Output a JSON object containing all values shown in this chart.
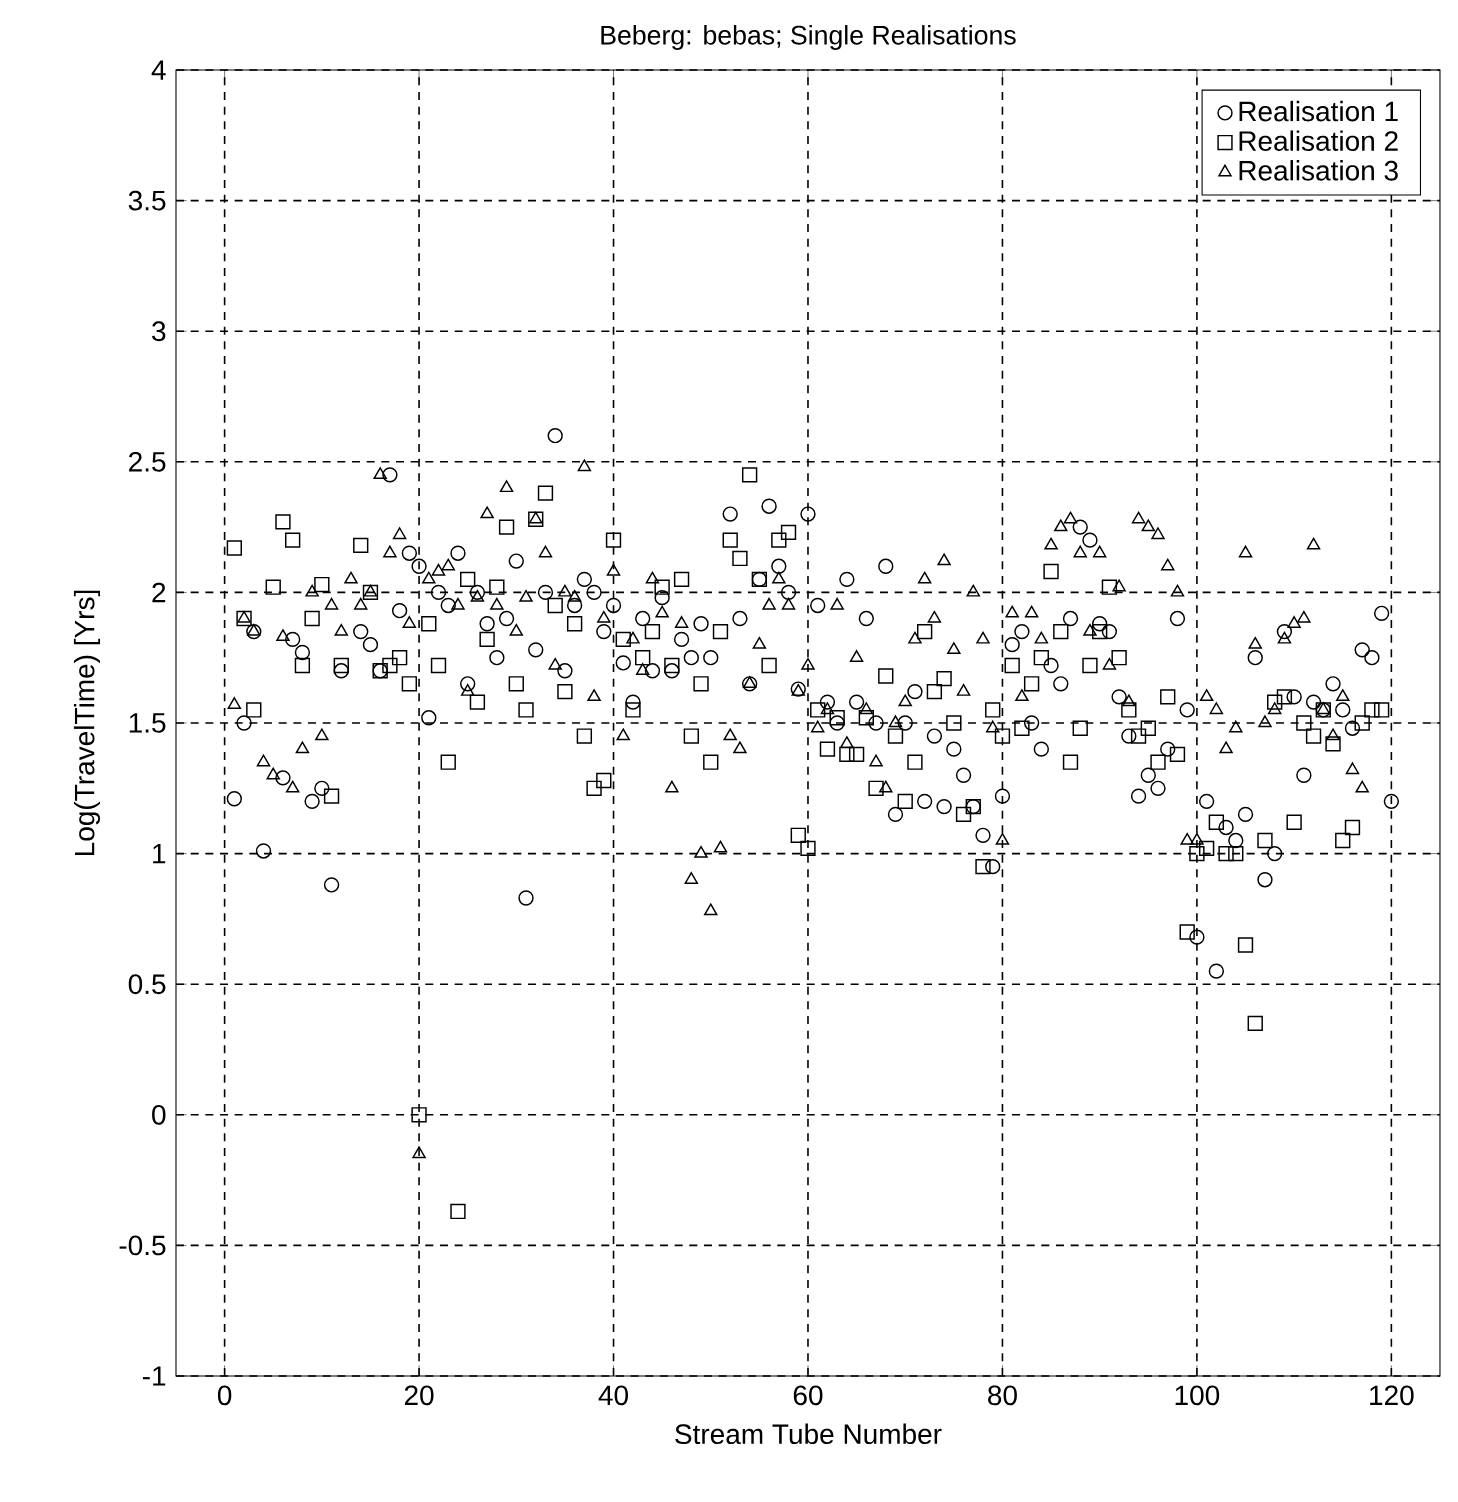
{
  "chart_data": {
    "type": "scatter",
    "title": "Beberg: bebas;    Single Realisations",
    "xlabel": "Stream Tube Number",
    "ylabel": "Log(TravelTime) [Yrs]",
    "xlim": [
      -5,
      125
    ],
    "ylim": [
      -1,
      4
    ],
    "xticks": [
      0,
      20,
      40,
      60,
      80,
      100,
      120
    ],
    "yticks": [
      -1,
      -0.5,
      0,
      0.5,
      1,
      1.5,
      2,
      2.5,
      3,
      3.5,
      4
    ],
    "grid": true,
    "legend": "top right",
    "series": [
      {
        "name": "Realisation 1",
        "color": "#000000",
        "marker": "circle",
        "x": [
          1,
          2,
          3,
          4,
          6,
          7,
          8,
          9,
          10,
          11,
          12,
          14,
          15,
          16,
          17,
          18,
          19,
          20,
          21,
          22,
          23,
          24,
          25,
          26,
          27,
          28,
          29,
          30,
          31,
          32,
          33,
          34,
          35,
          36,
          37,
          38,
          39,
          40,
          41,
          42,
          43,
          44,
          45,
          46,
          47,
          48,
          49,
          50,
          52,
          53,
          54,
          55,
          56,
          57,
          58,
          59,
          60,
          61,
          62,
          63,
          64,
          65,
          66,
          67,
          68,
          69,
          70,
          71,
          72,
          73,
          74,
          75,
          76,
          77,
          78,
          79,
          80,
          81,
          82,
          83,
          84,
          85,
          86,
          87,
          88,
          89,
          90,
          91,
          92,
          93,
          94,
          95,
          96,
          97,
          98,
          99,
          100,
          101,
          102,
          103,
          104,
          105,
          106,
          107,
          108,
          109,
          110,
          111,
          112,
          113,
          114,
          115,
          116,
          117,
          118,
          119,
          120
        ],
        "values": [
          1.21,
          1.5,
          1.85,
          1.01,
          1.29,
          1.82,
          1.77,
          1.2,
          1.25,
          0.88,
          1.7,
          1.85,
          1.8,
          1.7,
          2.45,
          1.93,
          2.15,
          2.1,
          1.52,
          2.0,
          1.95,
          2.15,
          1.65,
          2.0,
          1.88,
          1.75,
          1.9,
          2.12,
          0.83,
          1.78,
          2.0,
          2.6,
          1.7,
          1.95,
          2.05,
          2.0,
          1.85,
          1.95,
          1.73,
          1.58,
          1.9,
          1.7,
          1.98,
          1.7,
          1.82,
          1.75,
          1.88,
          1.75,
          2.3,
          1.9,
          1.65,
          2.05,
          2.33,
          2.1,
          2.0,
          1.63,
          2.3,
          1.95,
          1.58,
          1.5,
          2.05,
          1.58,
          1.9,
          1.5,
          2.1,
          1.15,
          1.5,
          1.62,
          1.2,
          1.45,
          1.18,
          1.4,
          1.3,
          1.18,
          1.07,
          0.95,
          1.22,
          1.8,
          1.85,
          1.5,
          1.4,
          1.72,
          1.65,
          1.9,
          2.25,
          2.2,
          1.88,
          1.85,
          1.6,
          1.45,
          1.22,
          1.3,
          1.25,
          1.4,
          1.9,
          1.55,
          0.68,
          1.2,
          0.55,
          1.1,
          1.05,
          1.15,
          1.75,
          0.9,
          1.0,
          1.85,
          1.6,
          1.3,
          1.58,
          1.55,
          1.65,
          1.55,
          1.48,
          1.78,
          1.75,
          1.92,
          1.2
        ]
      },
      {
        "name": "Realisation 2",
        "color": "#000000",
        "marker": "square",
        "x": [
          1,
          2,
          3,
          5,
          6,
          7,
          8,
          9,
          10,
          11,
          12,
          14,
          15,
          16,
          17,
          18,
          19,
          20,
          21,
          22,
          23,
          24,
          25,
          26,
          27,
          28,
          29,
          30,
          31,
          32,
          33,
          34,
          35,
          36,
          37,
          38,
          39,
          40,
          41,
          42,
          43,
          44,
          45,
          46,
          47,
          48,
          49,
          50,
          51,
          52,
          53,
          54,
          55,
          56,
          57,
          58,
          59,
          60,
          61,
          62,
          63,
          64,
          65,
          66,
          67,
          68,
          69,
          70,
          71,
          72,
          73,
          74,
          75,
          76,
          77,
          78,
          79,
          80,
          81,
          82,
          83,
          84,
          85,
          86,
          87,
          88,
          89,
          90,
          91,
          92,
          93,
          94,
          95,
          96,
          97,
          98,
          99,
          100,
          101,
          102,
          103,
          104,
          105,
          106,
          107,
          108,
          109,
          110,
          111,
          112,
          113,
          114,
          115,
          116,
          117,
          118,
          119
        ],
        "values": [
          2.17,
          1.9,
          1.55,
          2.02,
          2.27,
          2.2,
          1.72,
          1.9,
          2.03,
          1.22,
          1.72,
          2.18,
          2.0,
          1.7,
          1.72,
          1.75,
          1.65,
          0.0,
          1.88,
          1.72,
          1.35,
          -0.37,
          2.05,
          1.58,
          1.82,
          2.02,
          2.25,
          1.65,
          1.55,
          2.28,
          2.38,
          1.95,
          1.62,
          1.88,
          1.45,
          1.25,
          1.28,
          2.2,
          1.82,
          1.55,
          1.75,
          1.85,
          2.02,
          1.72,
          2.05,
          1.45,
          1.65,
          1.35,
          1.85,
          2.2,
          2.13,
          2.45,
          2.05,
          1.72,
          2.2,
          2.23,
          1.07,
          1.02,
          1.55,
          1.4,
          1.52,
          1.38,
          1.38,
          1.52,
          1.25,
          1.68,
          1.45,
          1.2,
          1.35,
          1.85,
          1.62,
          1.67,
          1.5,
          1.15,
          1.18,
          0.95,
          1.55,
          1.45,
          1.72,
          1.48,
          1.65,
          1.75,
          2.08,
          1.85,
          1.35,
          1.48,
          1.72,
          1.85,
          2.02,
          1.75,
          1.55,
          1.45,
          1.48,
          1.35,
          1.6,
          1.38,
          0.7,
          1.0,
          1.02,
          1.12,
          1.0,
          1.0,
          0.65,
          0.35,
          1.05,
          1.58,
          1.6,
          1.12,
          1.5,
          1.45,
          1.55,
          1.42,
          1.05,
          1.1,
          1.5,
          1.55,
          1.55
        ]
      },
      {
        "name": "Realisation 3",
        "color": "#000000",
        "marker": "triangle",
        "x": [
          1,
          2,
          3,
          4,
          5,
          6,
          7,
          8,
          9,
          10,
          11,
          12,
          13,
          14,
          15,
          16,
          17,
          18,
          19,
          20,
          21,
          22,
          23,
          24,
          25,
          26,
          27,
          28,
          29,
          30,
          31,
          32,
          33,
          34,
          35,
          36,
          37,
          38,
          39,
          40,
          41,
          42,
          43,
          44,
          45,
          46,
          47,
          48,
          49,
          50,
          51,
          52,
          53,
          54,
          55,
          56,
          57,
          58,
          59,
          60,
          61,
          62,
          63,
          64,
          65,
          66,
          67,
          68,
          69,
          70,
          71,
          72,
          73,
          74,
          75,
          76,
          77,
          78,
          79,
          80,
          81,
          82,
          83,
          84,
          85,
          86,
          87,
          88,
          89,
          90,
          91,
          92,
          93,
          94,
          95,
          96,
          97,
          98,
          99,
          100,
          101,
          102,
          103,
          104,
          105,
          106,
          107,
          108,
          109,
          110,
          111,
          112,
          113,
          114,
          115,
          116,
          117
        ],
        "values": [
          1.57,
          1.9,
          1.85,
          1.35,
          1.3,
          1.83,
          1.25,
          1.4,
          2.0,
          1.45,
          1.95,
          1.85,
          2.05,
          1.95,
          2.0,
          2.45,
          2.15,
          2.22,
          1.88,
          -0.15,
          2.05,
          2.08,
          2.1,
          1.95,
          1.62,
          1.98,
          2.3,
          1.95,
          2.4,
          1.85,
          1.98,
          2.28,
          2.15,
          1.72,
          2.0,
          1.98,
          2.48,
          1.6,
          1.9,
          2.08,
          1.45,
          1.82,
          1.7,
          2.05,
          1.92,
          1.25,
          1.88,
          0.9,
          1.0,
          0.78,
          1.02,
          1.45,
          1.4,
          1.65,
          1.8,
          1.95,
          2.05,
          1.95,
          1.62,
          1.72,
          1.48,
          1.55,
          1.95,
          1.42,
          1.75,
          1.55,
          1.35,
          1.25,
          1.5,
          1.58,
          1.82,
          2.05,
          1.9,
          2.12,
          1.78,
          1.62,
          2.0,
          1.82,
          1.48,
          1.05,
          1.92,
          1.6,
          1.92,
          1.82,
          2.18,
          2.25,
          2.28,
          2.15,
          1.85,
          2.15,
          1.72,
          2.02,
          1.58,
          2.28,
          2.25,
          2.22,
          2.1,
          2.0,
          1.05,
          1.05,
          1.6,
          1.55,
          1.4,
          1.48,
          2.15,
          1.8,
          1.5,
          1.55,
          1.82,
          1.88,
          1.9,
          2.18,
          1.55,
          1.45,
          1.6,
          1.32,
          1.25
        ]
      }
    ]
  }
}
